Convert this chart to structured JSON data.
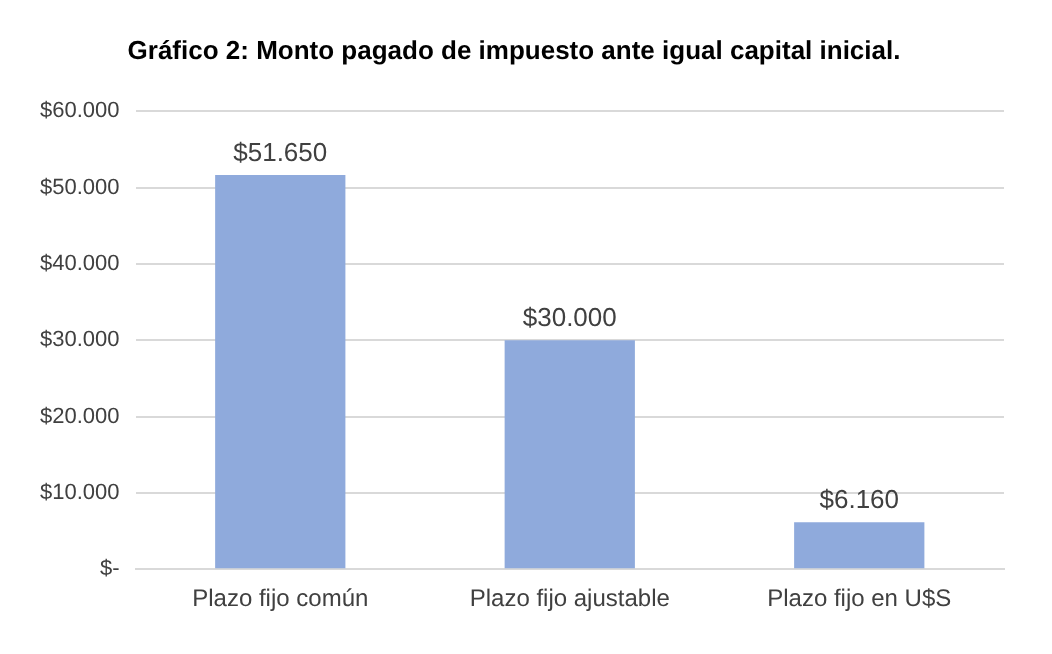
{
  "chart_data": {
    "type": "bar",
    "title": "Gráfico 2: Monto pagado de impuesto ante igual capital inicial.",
    "categories": [
      "Plazo fijo común",
      "Plazo fijo ajustable",
      "Plazo fijo en U$S"
    ],
    "values": [
      51650,
      30000,
      6160
    ],
    "value_labels": [
      "$51.650",
      "$30.000",
      "$6.160"
    ],
    "color": "#8faadc",
    "ylim": [
      0,
      60000
    ],
    "yticks": [
      {
        "value": 0,
        "label": "$-"
      },
      {
        "value": 10000,
        "label": "$10.000"
      },
      {
        "value": 20000,
        "label": "$20.000"
      },
      {
        "value": 30000,
        "label": "$30.000"
      },
      {
        "value": 40000,
        "label": "$40.000"
      },
      {
        "value": 50000,
        "label": "$50.000"
      },
      {
        "value": 60000,
        "label": "$60.000"
      }
    ],
    "grid": "y",
    "legend": false
  }
}
